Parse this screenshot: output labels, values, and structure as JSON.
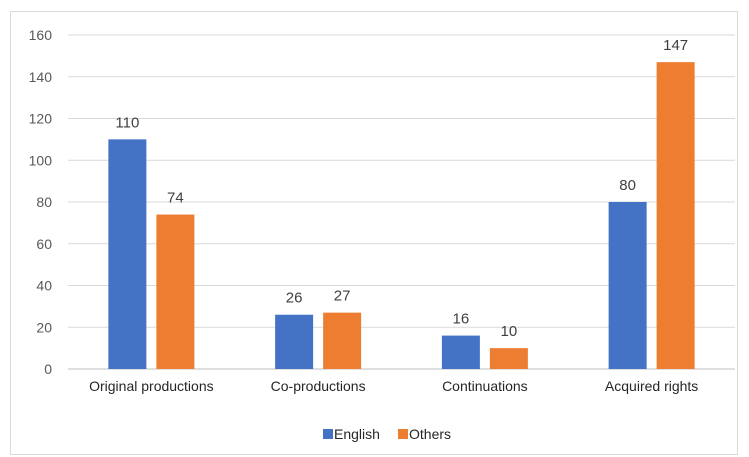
{
  "chart_data": {
    "type": "bar",
    "title": "",
    "xlabel": "",
    "ylabel": "",
    "categories": [
      "Original productions",
      "Co-productions",
      "Continuations",
      "Acquired rights"
    ],
    "series": [
      {
        "name": "English",
        "color": "#4472c4",
        "values": [
          110,
          26,
          16,
          80
        ]
      },
      {
        "name": "Others",
        "color": "#ed7d31",
        "values": [
          74,
          27,
          10,
          147
        ]
      }
    ],
    "ylim": [
      0,
      160
    ],
    "yticks": [
      0,
      20,
      40,
      60,
      80,
      100,
      120,
      140,
      160
    ],
    "grid": true,
    "legend_position": "bottom"
  }
}
